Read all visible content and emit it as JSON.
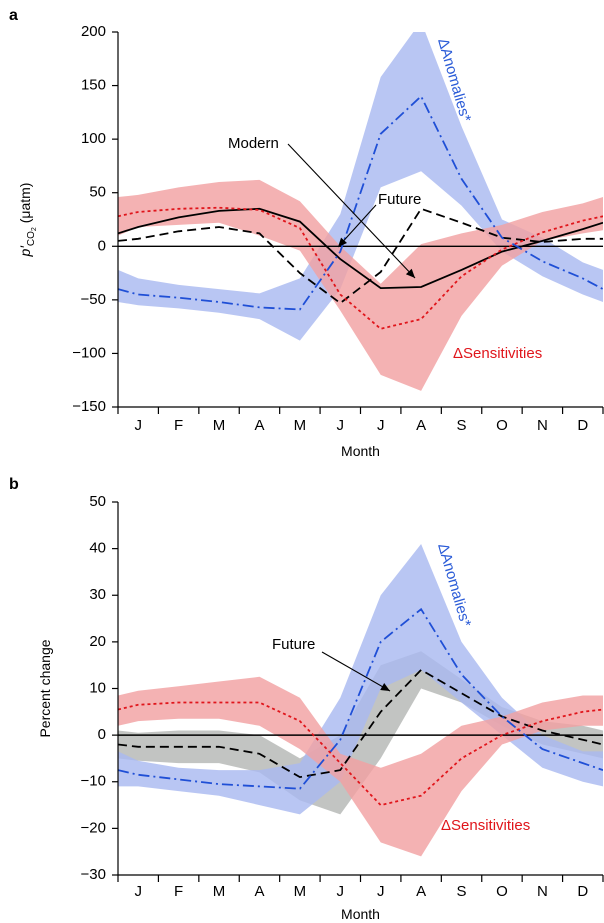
{
  "colors": {
    "modern": "#000000",
    "future": "#000000",
    "anomalies_line": "#1f4fd6",
    "anomalies_band": "#aab9f0",
    "sensitivities_line": "#e0151b",
    "sensitivities_band": "#f2a1a2",
    "future_band": "#b5b7b5",
    "anomalies_text": "#2a5bd7",
    "sensitivities_text": "#e0151b"
  },
  "chart_data": [
    {
      "type": "line",
      "panel_label": "a",
      "xlabel": "Month",
      "ylabel_main": "p′",
      "ylabel_sub": "CO",
      "ylabel_subsub": "2",
      "ylabel_unit": " (μatm)",
      "ylim": [
        -150,
        200
      ],
      "yticks": [
        "200",
        "150",
        "100",
        "50",
        "0",
        "−50",
        "−100",
        "−150"
      ],
      "yticks_values": [
        200,
        150,
        100,
        50,
        0,
        -50,
        -100,
        -150
      ],
      "categories": [
        "J",
        "F",
        "M",
        "A",
        "M",
        "J",
        "J",
        "A",
        "S",
        "O",
        "N",
        "D"
      ],
      "zero_line": true,
      "series": [
        {
          "name": "Modern",
          "style": "solid",
          "color_key": "modern",
          "values": [
            18,
            27,
            33,
            35,
            23,
            -12,
            -39,
            -38,
            -22,
            -5,
            5,
            16
          ],
          "edge_values": [
            12,
            22
          ]
        },
        {
          "name": "Future",
          "style": "dashed",
          "color_key": "future",
          "values": [
            7,
            14,
            18,
            12,
            -25,
            -53,
            -24,
            35,
            22,
            8,
            4,
            7
          ],
          "edge_values": [
            5,
            7
          ]
        },
        {
          "name": "ΔAnomalies*",
          "style": "dashdot",
          "color_key": "anomalies_line",
          "band_color_key": "anomalies_band",
          "values": [
            -45,
            -48,
            -52,
            -57,
            -59,
            -5,
            105,
            140,
            63,
            8,
            -14,
            -30
          ],
          "edge_values": [
            -40,
            -40
          ],
          "band_lower": [
            -55,
            -58,
            -62,
            -68,
            -88,
            -40,
            55,
            70,
            38,
            -5,
            -28,
            -45
          ],
          "band_upper": [
            -30,
            -36,
            -40,
            -44,
            -30,
            30,
            158,
            210,
            112,
            25,
            8,
            -15
          ],
          "band_edge_lower": [
            -52,
            -52
          ],
          "band_edge_upper": [
            -22,
            -22
          ]
        },
        {
          "name": "ΔSensitivities",
          "style": "dotted",
          "color_key": "sensitivities_line",
          "band_color_key": "sensitivities_band",
          "values": [
            32,
            35,
            36,
            34,
            17,
            -45,
            -77,
            -68,
            -28,
            -3,
            13,
            24
          ],
          "edge_values": [
            28,
            28
          ],
          "band_lower": [
            18,
            20,
            22,
            10,
            -4,
            -60,
            -120,
            -135,
            -65,
            -18,
            5,
            12
          ],
          "band_upper": [
            48,
            55,
            60,
            62,
            42,
            0,
            -35,
            2,
            12,
            20,
            32,
            40
          ],
          "band_edge_lower": [
            10,
            15
          ],
          "band_edge_upper": [
            46,
            46
          ]
        }
      ],
      "annotations": {
        "modern": "Modern",
        "future": "Future",
        "anomalies": "ΔAnomalies*",
        "sensitivities": "ΔSensitivities"
      }
    },
    {
      "type": "line",
      "panel_label": "b",
      "xlabel": "Month",
      "ylabel": "Percent change",
      "ylim": [
        -30,
        50
      ],
      "yticks": [
        "50",
        "40",
        "30",
        "20",
        "10",
        "0",
        "−10",
        "−20",
        "−30"
      ],
      "yticks_values": [
        50,
        40,
        30,
        20,
        10,
        0,
        -10,
        -20,
        -30
      ],
      "categories": [
        "J",
        "F",
        "M",
        "A",
        "M",
        "J",
        "J",
        "A",
        "S",
        "O",
        "N",
        "D"
      ],
      "zero_line": true,
      "series": [
        {
          "name": "Future",
          "style": "dashed",
          "color_key": "future",
          "band_color_key": "future_band",
          "values": [
            -2.5,
            -2.5,
            -2.5,
            -4,
            -9,
            -7.5,
            5,
            14,
            9,
            4,
            1,
            -1
          ],
          "edge_values": [
            -2,
            -2
          ],
          "band_lower": [
            -5.5,
            -6,
            -6,
            -8,
            -14,
            -17,
            -5,
            10,
            7,
            2,
            -2,
            -4
          ],
          "band_upper": [
            0.5,
            1,
            1,
            0,
            -5,
            0,
            15,
            18,
            12,
            6,
            3,
            2
          ],
          "band_edge_lower": [
            -5,
            -5
          ],
          "band_edge_upper": [
            1,
            1
          ]
        },
        {
          "name": "ΔAnomalies*",
          "style": "dashdot",
          "color_key": "anomalies_line",
          "band_color_key": "anomalies_band",
          "values": [
            -8.5,
            -9.5,
            -10.5,
            -11,
            -11.5,
            -1,
            20,
            27,
            13,
            4,
            -3,
            -6
          ],
          "edge_values": [
            -7.5,
            -7.5
          ],
          "band_lower": [
            -11,
            -12,
            -13,
            -15,
            -17,
            -10,
            10,
            14,
            7,
            0,
            -7,
            -10
          ],
          "band_upper": [
            -5.5,
            -7,
            -7.5,
            -7.5,
            -6,
            8,
            30,
            41,
            20,
            8,
            0,
            -3.5
          ],
          "band_edge_lower": [
            -11,
            -11
          ],
          "band_edge_upper": [
            -3.5,
            -3.5
          ]
        },
        {
          "name": "ΔSensitivities",
          "style": "dotted",
          "color_key": "sensitivities_line",
          "band_color_key": "sensitivities_band",
          "values": [
            6.5,
            7,
            7,
            7,
            3,
            -6,
            -15,
            -13,
            -5,
            0,
            3,
            5
          ],
          "edge_values": [
            5.5,
            5.5
          ],
          "band_lower": [
            3,
            3.5,
            3.5,
            2,
            -3,
            -10,
            -23,
            -26,
            -12,
            -2,
            1,
            2
          ],
          "band_upper": [
            9.5,
            10.5,
            11.5,
            12.5,
            8,
            -4,
            -7,
            -4,
            2,
            4,
            7,
            8.5
          ],
          "band_edge_lower": [
            2,
            2
          ],
          "band_edge_upper": [
            8.5,
            8.5
          ]
        }
      ],
      "annotations": {
        "future": "Future",
        "anomalies": "ΔAnomalies*",
        "sensitivities": "ΔSensitivities"
      }
    }
  ]
}
